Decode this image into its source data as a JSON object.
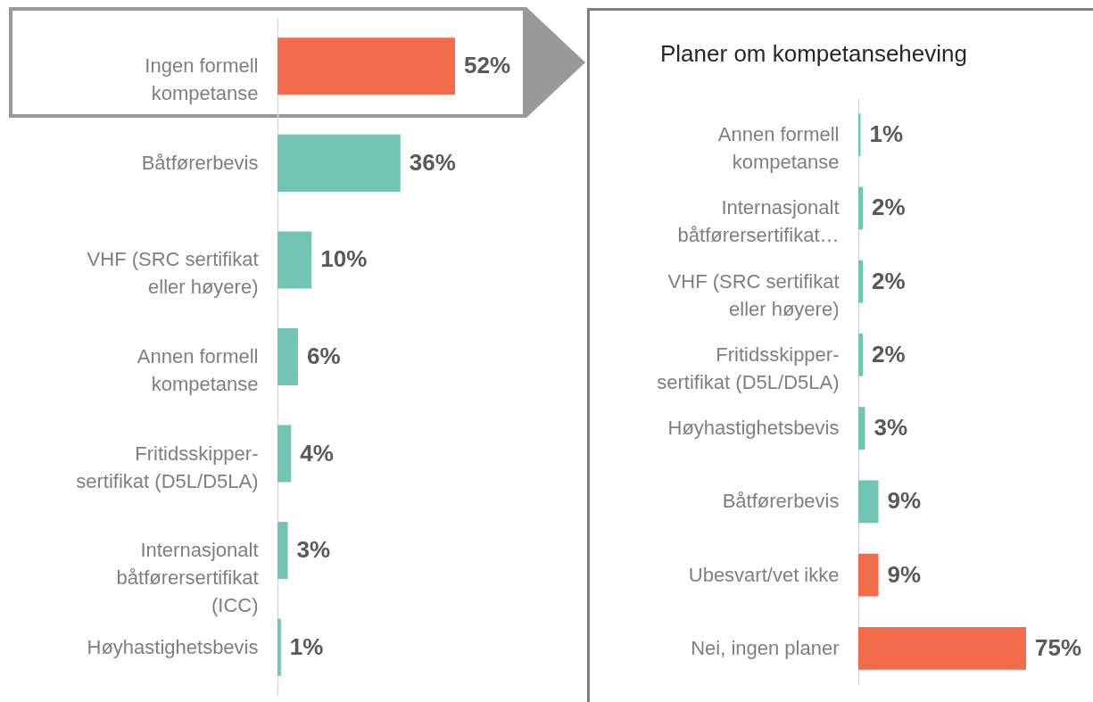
{
  "chart_data": [
    {
      "type": "bar",
      "orientation": "horizontal",
      "categories": [
        "Ingen formell kompetanse",
        "Båtførerbevis",
        "VHF (SRC sertifikat eller høyere)",
        "Annen formell kompetanse",
        "Fritidsskipper-sertifikat (D5L/D5LA)",
        "Internasjonalt båtførersertifikat (ICC)",
        "Høyhastighetsbevis"
      ],
      "values": [
        52,
        36,
        10,
        6,
        4,
        3,
        1
      ],
      "value_labels": [
        "52%",
        "36%",
        "10%",
        "6%",
        "4%",
        "3%",
        "1%"
      ],
      "colors": [
        "#f26b4b",
        "#72c4b5",
        "#72c4b5",
        "#72c4b5",
        "#72c4b5",
        "#72c4b5",
        "#72c4b5"
      ]
    },
    {
      "type": "bar",
      "orientation": "horizontal",
      "title": "Planer om kompetanseheving",
      "categories": [
        "Annen formell kompetanse",
        "Internasjonalt båtførersertifikat…",
        "VHF (SRC sertifikat eller høyere)",
        "Fritidsskipper-sertifikat (D5L/D5LA)",
        "Høyhastighetsbevis",
        "Båtførerbevis",
        "Ubesvart/vet ikke",
        "Nei, ingen planer"
      ],
      "values": [
        1,
        2,
        2,
        2,
        3,
        9,
        9,
        75
      ],
      "value_labels": [
        "1%",
        "2%",
        "2%",
        "2%",
        "3%",
        "9%",
        "9%",
        "75%"
      ],
      "colors": [
        "#72c4b5",
        "#72c4b5",
        "#72c4b5",
        "#72c4b5",
        "#72c4b5",
        "#72c4b5",
        "#f26b4b",
        "#f26b4b"
      ]
    }
  ]
}
